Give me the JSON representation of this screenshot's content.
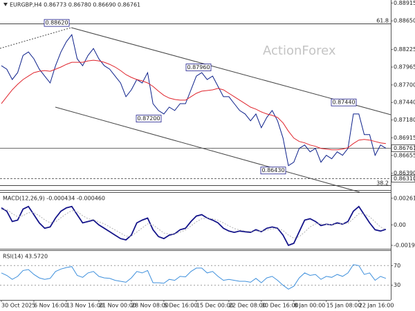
{
  "chart_data": [
    {
      "type": "line",
      "title": "EURGBP,H4 0.86773 0.86780 0.86690 0.86761",
      "watermark": "ActionForex",
      "fib_labels": [
        "61.8",
        "38.2"
      ],
      "categories": [
        "30 Oct 2025",
        null,
        null,
        null,
        null,
        null,
        "6 Nov 16:00",
        null,
        null,
        null,
        null,
        null,
        "13 Nov 16:00",
        null,
        null,
        null,
        null,
        null,
        "21 Nov 00:00",
        null,
        null,
        null,
        null,
        null,
        "28 Nov 08:00",
        null,
        null,
        null,
        null,
        null,
        "5 Dec 16:00",
        null,
        null,
        null,
        null,
        null,
        "15 Dec 00:00",
        null,
        null,
        null,
        null,
        null,
        "22 Dec 08:00",
        null,
        null,
        null,
        null,
        null,
        "30 Dec 16:00",
        null,
        null,
        null,
        null,
        null,
        "8 Jan 00:00",
        null,
        null,
        null,
        null,
        null,
        "15 Jan 08:00",
        null,
        null,
        null,
        null,
        null,
        "22 Jan 16:00",
        null,
        null,
        null,
        null,
        null
      ],
      "series": [
        {
          "color": "#0b1f8a",
          "values": [
            0.87985,
            0.87934,
            0.8778,
            0.87882,
            0.88138,
            0.88189,
            0.88087,
            0.87934,
            0.87831,
            0.87729,
            0.87985,
            0.88189,
            0.88342,
            0.88445,
            0.88087,
            0.87985,
            0.88138,
            0.8824,
            0.88087,
            0.87985,
            0.87934,
            0.87831,
            0.87729,
            0.87525,
            0.87627,
            0.8778,
            0.87729,
            0.87882,
            0.87422,
            0.8732,
            0.87269,
            0.87371,
            0.8732,
            0.87422,
            0.87422,
            0.87627,
            0.87831,
            0.87882,
            0.8778,
            0.87831,
            0.87678,
            0.87525,
            0.87525,
            0.87422,
            0.8732,
            0.87269,
            0.87167,
            0.87269,
            0.87065,
            0.87218,
            0.8732,
            0.87167,
            0.86911,
            0.86502,
            0.86553,
            0.86758,
            0.86809,
            0.86707,
            0.86758,
            0.86553,
            0.86656,
            0.86605,
            0.86707,
            0.86656,
            0.86758,
            0.87269,
            0.87269,
            0.86962,
            0.86962,
            0.86656,
            0.86809,
            0.86761
          ]
        },
        {
          "color": "#e0242c",
          "values": [
            0.87423,
            0.87525,
            0.87627,
            0.87709,
            0.8778,
            0.87831,
            0.87882,
            0.87903,
            0.87913,
            0.87903,
            0.87934,
            0.87965,
            0.88005,
            0.88036,
            0.88036,
            0.88036,
            0.88057,
            0.88067,
            0.88057,
            0.88036,
            0.88005,
            0.87965,
            0.87913,
            0.87852,
            0.87811,
            0.8778,
            0.8776,
            0.87729,
            0.87678,
            0.87607,
            0.87546,
            0.87505,
            0.87484,
            0.87474,
            0.87474,
            0.87525,
            0.87576,
            0.87607,
            0.87617,
            0.87627,
            0.87648,
            0.87627,
            0.87576,
            0.87525,
            0.87474,
            0.87423,
            0.87371,
            0.87341,
            0.873,
            0.87269,
            0.87249,
            0.87218,
            0.87137,
            0.87014,
            0.86911,
            0.86861,
            0.8684,
            0.86809,
            0.86789,
            0.86758,
            0.86748,
            0.86738,
            0.86738,
            0.86748,
            0.86769,
            0.8683,
            0.86881,
            0.86891,
            0.86881,
            0.86861,
            0.8684,
            0.8683
          ]
        }
      ],
      "annotations": [
        {
          "value": 0.8862,
          "label": "0.88620"
        },
        {
          "value": 0.8796,
          "label": "0.87960"
        },
        {
          "value": 0.872,
          "label": "0.87200"
        },
        {
          "value": 0.8744,
          "label": "0.87440"
        },
        {
          "value": 0.8643,
          "label": "0.86430"
        }
      ],
      "hlines": [
        {
          "value": 0.8631,
          "label": "0.86310"
        },
        0.86761
      ],
      "ylim": [
        0.8614,
        0.8896
      ],
      "yticks": [
        0.88915,
        {
          "value": 0.8865,
          "label": "0.88650"
        },
        0.88225,
        0.87965,
        {
          "value": 0.877,
          "label": "0.87700"
        },
        {
          "value": 0.8744,
          "label": "0.87440"
        },
        {
          "value": 0.8718,
          "label": "0.87180"
        },
        0.86915,
        0.86655,
        {
          "value": 0.8639,
          "label": "0.86390"
        }
      ],
      "grid": false
    },
    {
      "type": "line",
      "title": "MACD(12,26,9) -0.000434 -0.000460",
      "series": [
        {
          "color": "#14148a",
          "values": [
            0.00167,
            0.00134,
            0.00033,
            0.00047,
            0.00154,
            0.0018,
            0.001,
            0.0002,
            -0.00033,
            -0.0002,
            0.00067,
            0.00134,
            0.00167,
            0.0018,
            0.001,
            0.0002,
            0.00033,
            0.00047,
            0,
            -0.00033,
            -0.00067,
            -0.001,
            -0.00134,
            -0.00147,
            -0.001,
            0.0002,
            0.00047,
            0.00067,
            -0.00047,
            -0.00114,
            -0.00134,
            -0.001,
            -0.00087,
            -0.00047,
            -0.00033,
            0.00033,
            0.00087,
            0.001,
            0.00067,
            0.00047,
            0.0002,
            -0.00033,
            -0.0006,
            -0.00073,
            -0.0006,
            -0.00067,
            -0.00073,
            -0.00047,
            -0.00067,
            -0.00033,
            -0.0002,
            -0.00033,
            -0.001,
            -0.002,
            -0.0018,
            -0.00067,
            0.00047,
            0.0006,
            0.00033,
            -7e-05,
            7e-05,
            0,
            0.0002,
            7e-05,
            0.00033,
            0.00134,
            0.0018,
            0.001,
            0.0002,
            -0.00047,
            -0.0006,
            -0.00043
          ]
        },
        {
          "color": "#b0b0b0",
          "values": [
            0.0015,
            0.0015,
            0.0011,
            0.0008,
            0.0009,
            0.0012,
            0.0012,
            0.0009,
            0.0005,
            0.0002,
            0.0003,
            0.0007,
            0.0011,
            0.0014,
            0.0013,
            0.0009,
            0.0006,
            0.0005,
            0.0003,
            0.0001,
            -0.0002,
            -0.0005,
            -0.0008,
            -0.0011,
            -0.0011,
            -0.0007,
            -0.0003,
            0.0001,
            0,
            -0.0004,
            -0.0008,
            -0.0009,
            -0.0009,
            -0.0007,
            -0.0005,
            -0.0001,
            0.0003,
            0.0006,
            0.00065,
            0.0006,
            0.00045,
            0.0002,
            -0.0001,
            -0.00035,
            -0.0005,
            -0.0006,
            -0.00065,
            -0.0006,
            -0.0006,
            -0.0005,
            -0.0004,
            -0.00035,
            -0.00055,
            -0.001,
            -0.0013,
            -0.00115,
            -0.0007,
            -0.0002,
            0.0001,
            0.0001,
            5e-05,
            3e-05,
            0.0001,
            0.0001,
            0.00015,
            0.0006,
            0.0011,
            0.0011,
            0.0008,
            0.0003,
            -0.0002,
            -0.00046
          ]
        }
      ],
      "ylim": [
        -0.00234,
        0.00314
      ],
      "yticks": [
        0.002614,
        {
          "value": 0,
          "label": "0.00"
        },
        -0.001997
      ],
      "grid": false
    },
    {
      "type": "line",
      "title": "RSI(14) 43.5720",
      "series": [
        {
          "color": "#3d8fdc",
          "values": [
            55,
            50,
            42,
            48,
            60,
            62,
            52,
            45,
            42,
            44,
            58,
            63,
            66,
            68,
            50,
            46,
            55,
            58,
            48,
            45,
            44,
            40,
            38,
            36,
            45,
            58,
            55,
            60,
            35,
            35,
            34,
            42,
            40,
            48,
            47,
            58,
            65,
            65,
            55,
            58,
            48,
            40,
            42,
            40,
            38,
            38,
            36,
            44,
            35,
            45,
            48,
            40,
            30,
            22,
            28,
            45,
            55,
            50,
            52,
            42,
            48,
            46,
            52,
            48,
            55,
            72,
            70,
            52,
            55,
            40,
            48,
            44
          ]
        }
      ],
      "ylim": [
        0,
        100
      ],
      "yticks": [
        70,
        30
      ],
      "grid": true
    }
  ]
}
